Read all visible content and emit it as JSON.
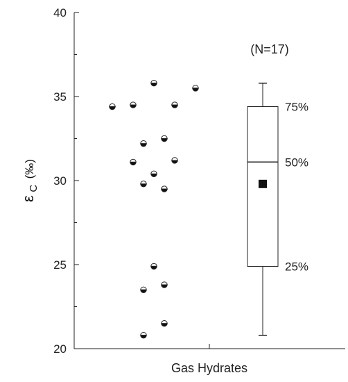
{
  "chart_data": {
    "type": "box",
    "title": "",
    "category": "Gas Hydrates",
    "sample_count_label": "(N=17)",
    "ylabel": {
      "symbol": "ε",
      "subscript": "C",
      "unit": "(‰)"
    },
    "ylim": [
      20,
      40
    ],
    "yticks": [
      20,
      25,
      30,
      35,
      40
    ],
    "grid": false,
    "points": [
      {
        "x": 1,
        "y": 34.4
      },
      {
        "x": 2,
        "y": 34.5
      },
      {
        "x": 3,
        "y": 35.8
      },
      {
        "x": 4,
        "y": 34.5
      },
      {
        "x": 5,
        "y": 35.5
      },
      {
        "x": 6,
        "y": 32.2
      },
      {
        "x": 7,
        "y": 32.5
      },
      {
        "x": 8,
        "y": 31.1
      },
      {
        "x": 9,
        "y": 30.4
      },
      {
        "x": 10,
        "y": 31.2
      },
      {
        "x": 11,
        "y": 29.8
      },
      {
        "x": 12,
        "y": 29.5
      },
      {
        "x": 13,
        "y": 24.9
      },
      {
        "x": 14,
        "y": 23.5
      },
      {
        "x": 15,
        "y": 23.8
      },
      {
        "x": 16,
        "y": 21.5
      },
      {
        "x": 17,
        "y": 20.8
      }
    ],
    "box": {
      "q1": 24.9,
      "median": 31.1,
      "q3": 34.4,
      "min": 20.8,
      "max": 35.8,
      "mean": 29.8
    },
    "percentile_labels": [
      {
        "label": "75%",
        "value": 34.4
      },
      {
        "label": "50%",
        "value": 31.1
      },
      {
        "label": "25%",
        "value": 24.9
      }
    ]
  }
}
